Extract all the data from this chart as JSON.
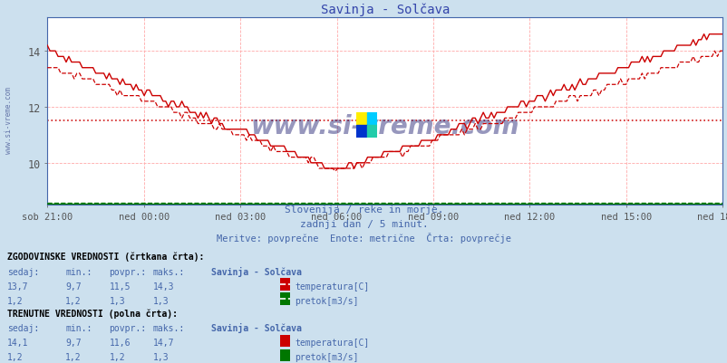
{
  "title": "Savinja - Solčava",
  "subtitle1": "Slovenija / reke in morje.",
  "subtitle2": "zadnji dan / 5 minut.",
  "subtitle3": "Meritve: povprečne  Enote: metrične  Črta: povprečje",
  "xlabel_ticks": [
    "sob 21:00",
    "ned 00:00",
    "ned 03:00",
    "ned 06:00",
    "ned 09:00",
    "ned 12:00",
    "ned 15:00",
    "ned 18:00"
  ],
  "ylim_min": 8.5,
  "ylim_max": 15.2,
  "yticks": [
    10,
    12,
    14
  ],
  "avg_temp": 11.5,
  "bg_color": "#cce0ee",
  "plot_bg": "#ffffff",
  "temp_color": "#cc0000",
  "flow_color": "#007700",
  "watermark_color": "#1a1a6e",
  "watermark_text": "www.si-vreme.com",
  "sidebar_text": "www.si-vreme.com",
  "hist_sedaj": "13,7",
  "hist_min": "9,7",
  "hist_povpr": "11,5",
  "hist_maks": "14,3",
  "hist_flow_sedaj": "1,2",
  "hist_flow_min": "1,2",
  "hist_flow_povpr": "1,3",
  "hist_flow_maks": "1,3",
  "curr_sedaj": "14,1",
  "curr_min": "9,7",
  "curr_povpr": "11,6",
  "curr_maks": "14,7",
  "curr_flow_sedaj": "1,2",
  "curr_flow_min": "1,2",
  "curr_flow_povpr": "1,2",
  "curr_flow_maks": "1,3"
}
